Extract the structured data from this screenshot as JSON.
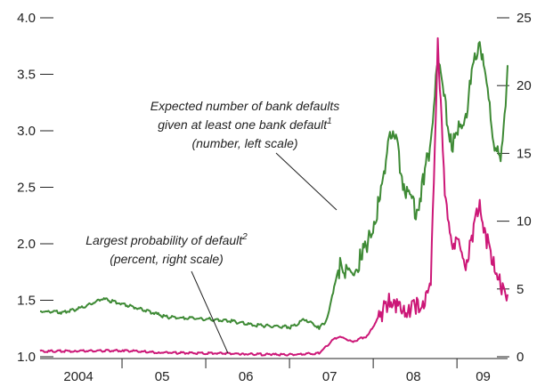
{
  "chart_data": {
    "type": "line",
    "title": "",
    "xlabel": "",
    "ylabel_left": "",
    "ylabel_right": "",
    "x_tick_labels": [
      "2004",
      "05",
      "06",
      "07",
      "08",
      "09"
    ],
    "x_range": [
      "2004-01",
      "2009-08"
    ],
    "y_left": {
      "range": [
        1.0,
        4.0
      ],
      "ticks": [
        1.0,
        1.5,
        2.0,
        2.5,
        3.0,
        3.5,
        4.0
      ],
      "tick_labels": [
        "1.0",
        "1.5",
        "2.0",
        "2.5",
        "3.0",
        "3.5",
        "4.0"
      ]
    },
    "y_right": {
      "range": [
        0,
        25
      ],
      "ticks": [
        0,
        5,
        10,
        15,
        20,
        25
      ],
      "tick_labels": [
        "0",
        "5",
        "10",
        "15",
        "20",
        "25"
      ]
    },
    "grid": false,
    "series": [
      {
        "name": "Expected number of bank defaults given at least one bank default",
        "axis": "left",
        "color": "#3e8a35",
        "points": [
          [
            "2004-01",
            1.41
          ],
          [
            "2004-04",
            1.4
          ],
          [
            "2004-07",
            1.44
          ],
          [
            "2004-10",
            1.52
          ],
          [
            "2005-01",
            1.47
          ],
          [
            "2005-04",
            1.42
          ],
          [
            "2005-07",
            1.36
          ],
          [
            "2005-10",
            1.35
          ],
          [
            "2006-01",
            1.34
          ],
          [
            "2006-04",
            1.33
          ],
          [
            "2006-07",
            1.29
          ],
          [
            "2006-10",
            1.28
          ],
          [
            "2007-01",
            1.27
          ],
          [
            "2007-03",
            1.34
          ],
          [
            "2007-05",
            1.26
          ],
          [
            "2007-06",
            1.32
          ],
          [
            "2007-07",
            1.58
          ],
          [
            "2007-08",
            1.85
          ],
          [
            "2007-09",
            1.8
          ],
          [
            "2007-10",
            1.72
          ],
          [
            "2007-11",
            1.95
          ],
          [
            "2007-12",
            2.05
          ],
          [
            "2008-01",
            2.28
          ],
          [
            "2008-02",
            2.5
          ],
          [
            "2008-03",
            3.07
          ],
          [
            "2008-04",
            2.95
          ],
          [
            "2008-05",
            2.6
          ],
          [
            "2008-06",
            2.45
          ],
          [
            "2008-07",
            2.3
          ],
          [
            "2008-08",
            2.65
          ],
          [
            "2008-09",
            2.95
          ],
          [
            "2008-10",
            3.7
          ],
          [
            "2008-11",
            3.3
          ],
          [
            "2008-12",
            2.9
          ],
          [
            "2009-01",
            3.05
          ],
          [
            "2009-02",
            3.2
          ],
          [
            "2009-03",
            3.55
          ],
          [
            "2009-04",
            3.88
          ],
          [
            "2009-05",
            3.4
          ],
          [
            "2009-06",
            3.0
          ],
          [
            "2009-07",
            2.7
          ],
          [
            "2009-08",
            3.58
          ]
        ]
      },
      {
        "name": "Largest probability of default",
        "axis": "right",
        "color": "#cc1777",
        "points": [
          [
            "2004-01",
            0.45
          ],
          [
            "2004-06",
            0.45
          ],
          [
            "2005-01",
            0.5
          ],
          [
            "2005-06",
            0.35
          ],
          [
            "2006-01",
            0.3
          ],
          [
            "2006-06",
            0.25
          ],
          [
            "2006-10",
            0.2
          ],
          [
            "2007-01",
            0.2
          ],
          [
            "2007-05",
            0.3
          ],
          [
            "2007-07",
            1.3
          ],
          [
            "2007-08",
            1.6
          ],
          [
            "2007-09",
            1.2
          ],
          [
            "2007-10",
            1.2
          ],
          [
            "2007-12",
            1.6
          ],
          [
            "2008-01",
            2.5
          ],
          [
            "2008-02",
            3.6
          ],
          [
            "2008-03",
            4.6
          ],
          [
            "2008-04",
            4.3
          ],
          [
            "2008-05",
            3.6
          ],
          [
            "2008-06",
            3.8
          ],
          [
            "2008-07",
            4.2
          ],
          [
            "2008-08",
            4.3
          ],
          [
            "2008-09",
            5.5
          ],
          [
            "2008-10",
            23.9
          ],
          [
            "2008-11",
            12.0
          ],
          [
            "2008-12",
            9.0
          ],
          [
            "2009-01",
            8.5
          ],
          [
            "2009-02",
            7.2
          ],
          [
            "2009-03",
            9.5
          ],
          [
            "2009-04",
            11.5
          ],
          [
            "2009-05",
            9.0
          ],
          [
            "2009-06",
            7.3
          ],
          [
            "2009-07",
            5.5
          ],
          [
            "2009-08",
            4.6
          ]
        ]
      }
    ],
    "annotations": [
      {
        "lines": [
          "Expected number of bank defaults",
          "given at least one bank default",
          "(number, left scale)"
        ],
        "superscript": "1"
      },
      {
        "lines": [
          "Largest probability of default",
          "(percent, right scale)"
        ],
        "superscript": "2"
      }
    ]
  }
}
